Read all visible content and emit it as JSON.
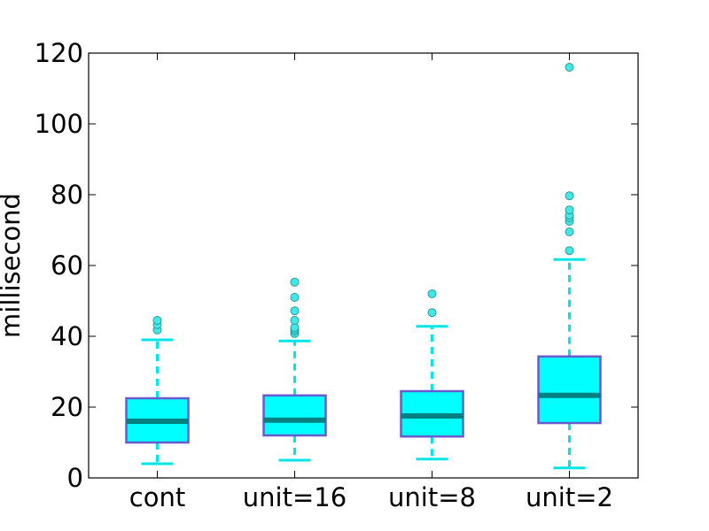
{
  "chart_data": {
    "type": "boxplot",
    "title": "",
    "xlabel": "",
    "ylabel": "millisecond",
    "ylim": [
      0,
      120
    ],
    "yticks": [
      0,
      20,
      40,
      60,
      80,
      100,
      120
    ],
    "grid": false,
    "categories": [
      "cont",
      "unit=16",
      "unit=8",
      "unit=2"
    ],
    "boxes": [
      {
        "label": "cont",
        "whisker_low": 4,
        "q1": 10,
        "median": 16,
        "q3": 22.5,
        "whisker_high": 39,
        "outliers": [
          41.8,
          43.3,
          44.5
        ]
      },
      {
        "label": "unit=16",
        "whisker_low": 5,
        "q1": 12,
        "median": 16.3,
        "q3": 23.3,
        "whisker_high": 38.7,
        "outliers": [
          40.8,
          41.5,
          42,
          42.5,
          44.5,
          47.2,
          51,
          55.3
        ]
      },
      {
        "label": "unit=8",
        "whisker_low": 5.3,
        "q1": 11.7,
        "median": 17.5,
        "q3": 24.5,
        "whisker_high": 42.8,
        "outliers": [
          46.7,
          52
        ]
      },
      {
        "label": "unit=2",
        "whisker_low": 2.8,
        "q1": 15.5,
        "median": 23.3,
        "q3": 34.3,
        "whisker_high": 61.7,
        "outliers": [
          64.2,
          69.5,
          72.5,
          73.5,
          74.2,
          75.7,
          79.7,
          116
        ]
      }
    ],
    "colors": {
      "box_fill": "#00ffff",
      "box_edge": "#6a5acd",
      "median": "#008080",
      "whisker": "#00e5e5",
      "outlier_fill": "#40e8e8",
      "outlier_edge": "#2a9d9d",
      "axis": "#000000"
    }
  }
}
